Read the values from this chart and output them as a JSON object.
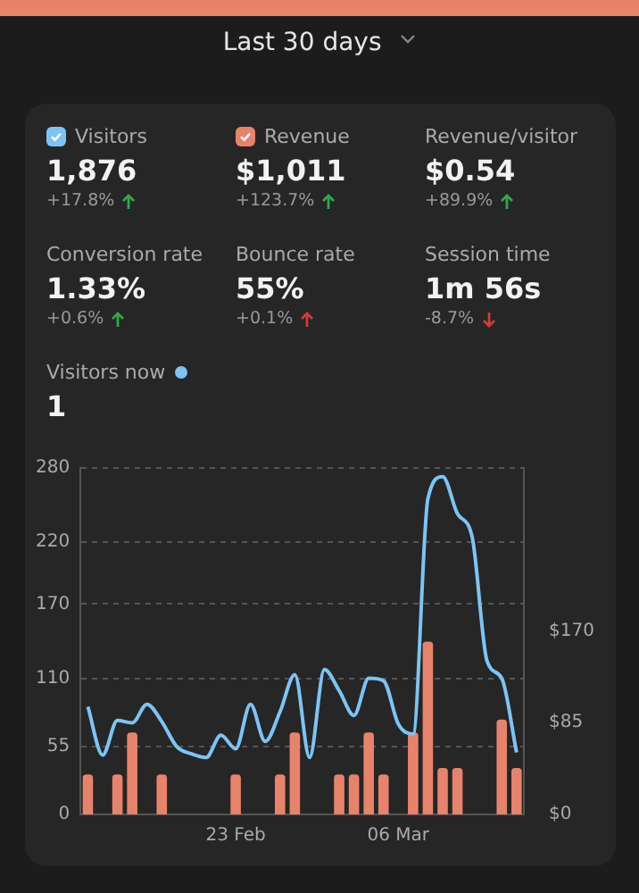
{
  "chart_data": {
    "type": "bar",
    "title": "Last 30 days",
    "categories": [
      null,
      null,
      null,
      null,
      null,
      null,
      null,
      null,
      null,
      null,
      "23 Feb",
      null,
      null,
      null,
      null,
      null,
      null,
      null,
      null,
      null,
      null,
      "06 Mar",
      null,
      null,
      null,
      null,
      null,
      null,
      null,
      null
    ],
    "series": [
      {
        "name": "Visitors",
        "type": "line",
        "color": "#7cc4f5",
        "values": [
          87,
          48,
          76,
          74,
          89,
          75,
          55,
          49,
          46,
          64,
          53,
          89,
          59,
          83,
          113,
          46,
          117,
          100,
          80,
          110,
          108,
          73,
          65,
          255,
          273,
          243,
          224,
          124,
          110,
          50
        ]
      },
      {
        "name": "Revenue",
        "axis": "y2",
        "color": "#e8836b",
        "values": [
          37,
          null,
          37,
          76,
          null,
          37,
          null,
          null,
          null,
          null,
          37,
          null,
          null,
          37,
          76,
          null,
          null,
          37,
          37,
          76,
          37,
          null,
          76,
          160,
          43,
          43,
          null,
          null,
          88,
          43
        ]
      }
    ],
    "ylim": [
      0,
      280
    ],
    "yticks": [
      0,
      55,
      110,
      170,
      220,
      280
    ],
    "y2lim": [
      0,
      321
    ],
    "y2ticks": [
      {
        "value": 0,
        "label": "$0"
      },
      {
        "value": 85,
        "label": "$85"
      },
      {
        "value": 170,
        "label": "$170"
      }
    ],
    "grid": "y",
    "legend": "top",
    "marker": "none",
    "annotations": [
      "1,876",
      "+17.8%",
      "$1,011",
      "+123.7%",
      "Revenue/visitor",
      "$0.54",
      "+89.9%",
      "Conversion rate",
      "1.33%",
      "+0.6%",
      "Bounce rate",
      "55%",
      "+0.1%",
      "Session time",
      "1m 56s",
      "-8.7%",
      "Visitors now",
      "1"
    ]
  }
}
